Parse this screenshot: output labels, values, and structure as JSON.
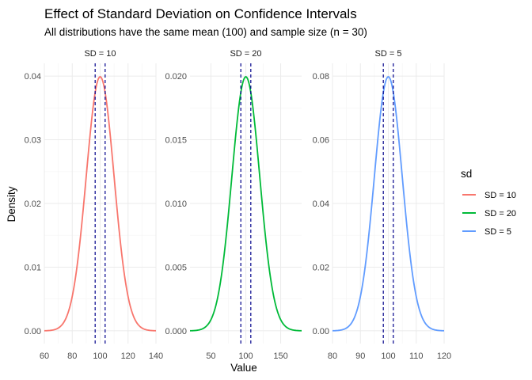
{
  "chart_data": {
    "type": "line",
    "title": "Effect of Standard Deviation on Confidence Intervals",
    "subtitle": "All distributions have the same mean (100) and sample size (n = 30)",
    "xlabel": "Value",
    "ylabel": "Density",
    "grid": true,
    "legend": {
      "title": "sd",
      "placement": "right",
      "entries": [
        "SD = 10",
        "SD = 20",
        "SD = 5"
      ]
    },
    "panels": [
      {
        "strip": "SD = 10",
        "mean": 100,
        "sd": 10,
        "color": "#F8766D",
        "xlim": [
          60,
          140
        ],
        "ylim": [
          0,
          0.04
        ],
        "x_ticks": [
          60,
          80,
          100,
          120,
          140
        ],
        "y_ticks": [
          0,
          0.01,
          0.02,
          0.03,
          0.04
        ],
        "y_tick_labels": [
          "0.00",
          "0.01",
          "0.02",
          "0.03",
          "0.04"
        ],
        "ci": [
          96.42,
          103.58
        ]
      },
      {
        "strip": "SD = 20",
        "mean": 100,
        "sd": 20,
        "color": "#00BA38",
        "xlim": [
          20,
          180
        ],
        "ylim": [
          0,
          0.02
        ],
        "x_ticks": [
          50,
          100,
          150
        ],
        "y_ticks": [
          0,
          0.005,
          0.01,
          0.015,
          0.02
        ],
        "y_tick_labels": [
          "0.000",
          "0.005",
          "0.010",
          "0.015",
          "0.020"
        ],
        "ci": [
          92.84,
          107.16
        ]
      },
      {
        "strip": "SD = 5",
        "mean": 100,
        "sd": 5,
        "color": "#619CFF",
        "xlim": [
          80,
          120
        ],
        "ylim": [
          0,
          0.08
        ],
        "x_ticks": [
          80,
          90,
          100,
          110,
          120
        ],
        "y_ticks": [
          0,
          0.02,
          0.04,
          0.06,
          0.08
        ],
        "y_tick_labels": [
          "0.00",
          "0.02",
          "0.04",
          "0.06",
          "0.08"
        ],
        "ci": [
          98.21,
          101.79
        ]
      }
    ],
    "ci_line_color": "#00008B"
  }
}
